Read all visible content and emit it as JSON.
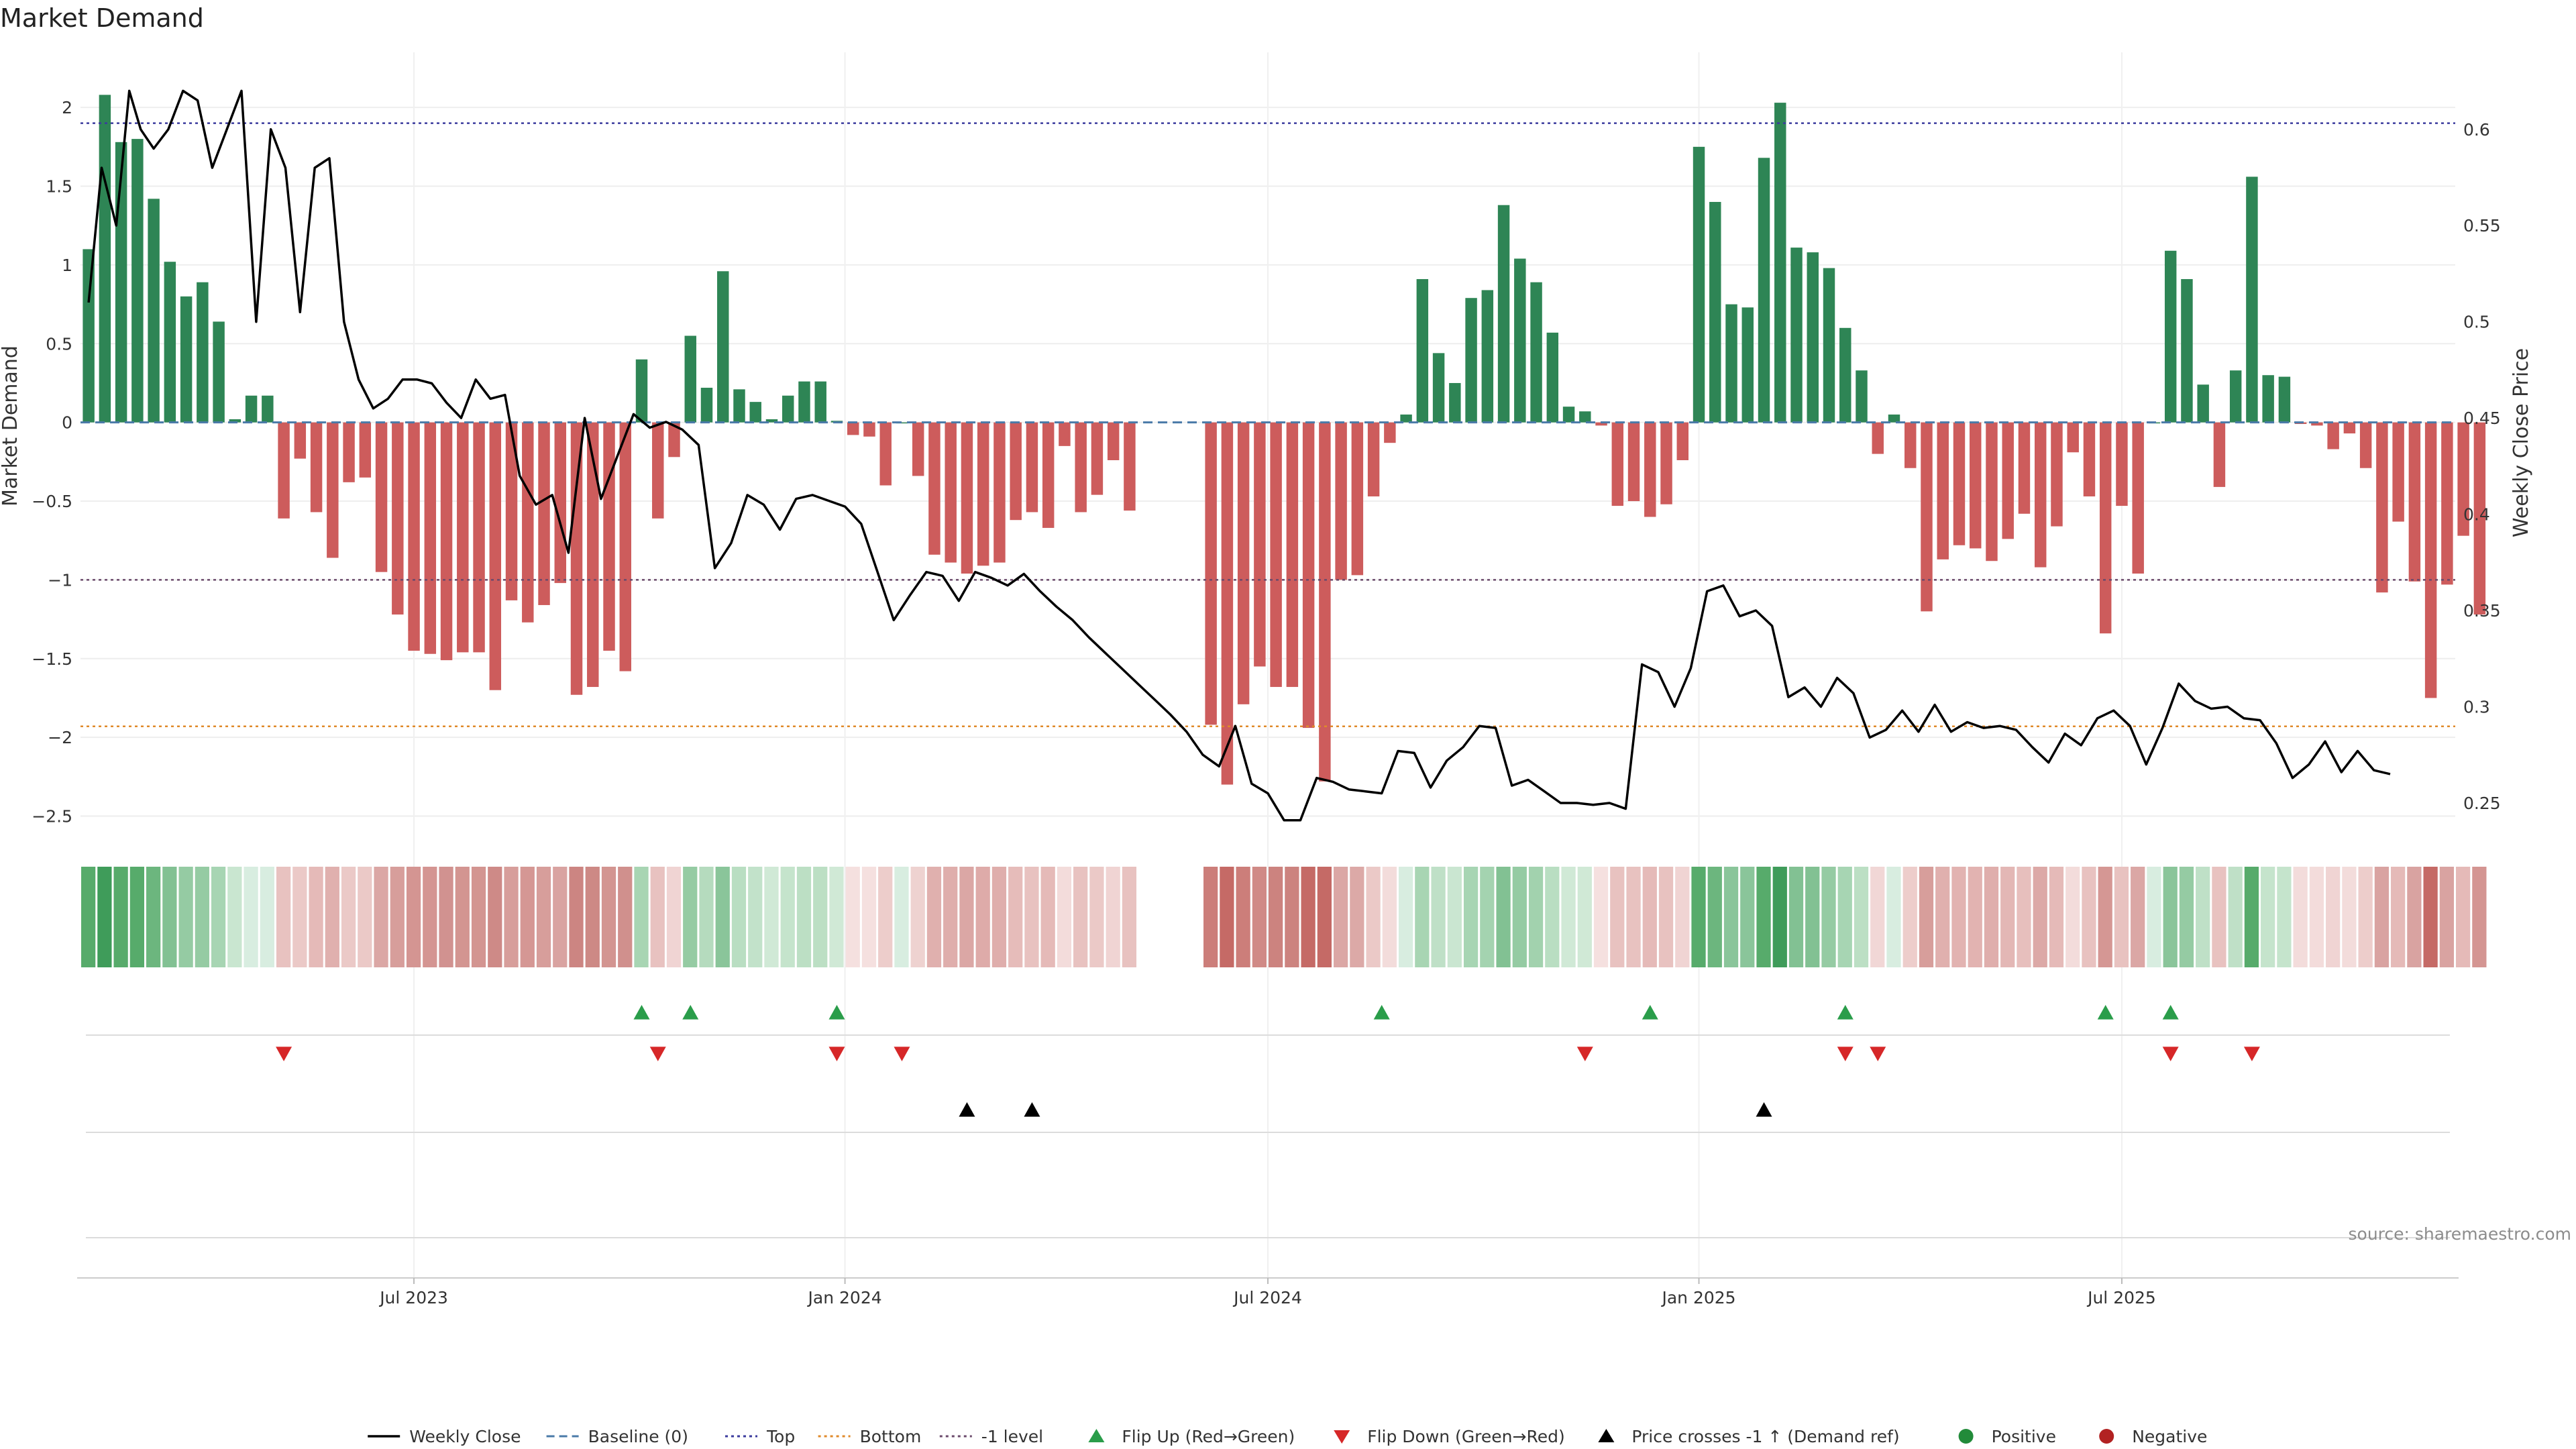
{
  "chart_data": {
    "type": "bar",
    "title": "Market Demand",
    "ylabel": "Market Demand",
    "y2label": "Weekly Close Price",
    "ylim": [
      -2.6,
      2.35
    ],
    "y2lim": [
      0.235,
      0.64
    ],
    "yticks": [
      2,
      1.5,
      1,
      0.5,
      0,
      -0.5,
      -1,
      -1.5,
      -2,
      -2.5
    ],
    "ytick_labels": [
      "2",
      "1.5",
      "1",
      "0.5",
      "0",
      "−0.5",
      "−1",
      "−1.5",
      "−2",
      "−2.5"
    ],
    "y2ticks": [
      0.6,
      0.55,
      0.5,
      0.45,
      0.4,
      0.35,
      0.3,
      0.25
    ],
    "y2tick_labels": [
      "0.6",
      "0.55",
      "0.5",
      "0.45",
      "0.4",
      "0.35",
      "0.3",
      "0.25"
    ],
    "x_range_weeks": [
      0,
      146
    ],
    "xticks": [
      {
        "week": 20.5,
        "label": "Jul 2023"
      },
      {
        "week": 47,
        "label": "Jan 2024"
      },
      {
        "week": 73,
        "label": "Jul 2024"
      },
      {
        "week": 99.5,
        "label": "Jan 2025"
      },
      {
        "week": 125.5,
        "label": "Jul 2025"
      }
    ],
    "levels": {
      "top": 1.9,
      "baseline": 0,
      "bottom": -1.93,
      "minus_one": -1
    },
    "demand": [
      1.1,
      2.08,
      1.78,
      1.8,
      1.42,
      1.02,
      0.8,
      0.89,
      0.64,
      0.02,
      0.17,
      0.17,
      -0.61,
      -0.23,
      -0.57,
      -0.86,
      -0.38,
      -0.35,
      -0.95,
      -1.22,
      -1.45,
      -1.47,
      -1.51,
      -1.46,
      -1.46,
      -1.7,
      -1.13,
      -1.27,
      -1.16,
      -1.02,
      -1.73,
      -1.68,
      -1.45,
      -1.58,
      0.4,
      -0.61,
      -0.22,
      0.55,
      0.22,
      0.96,
      0.21,
      0.13,
      0.02,
      0.17,
      0.26,
      0.26,
      0.01,
      -0.08,
      -0.09,
      -0.4,
      0,
      -0.34,
      -0.84,
      -0.89,
      -0.96,
      -0.91,
      -0.89,
      -0.62,
      -0.57,
      -0.67,
      -0.15,
      -0.57,
      -0.46,
      -0.24,
      -0.56,
      null,
      null,
      null,
      null,
      null,
      null,
      null,
      null,
      null,
      null,
      null,
      null,
      null,
      null,
      null,
      null,
      null,
      null,
      null,
      null,
      null,
      null,
      null,
      null,
      null,
      null,
      null,
      null,
      null,
      null,
      null,
      null,
      null,
      null,
      null,
      null,
      null,
      null,
      null,
      null,
      null,
      null,
      null,
      null,
      null,
      null,
      null,
      null,
      null,
      null,
      null,
      null,
      null,
      null,
      null,
      null,
      null,
      null,
      null,
      null,
      null,
      null,
      null,
      null,
      null,
      null,
      null,
      null,
      null,
      null,
      null,
      null,
      null,
      null,
      null,
      null,
      null,
      null,
      null,
      null
    ],
    "demand_part2_start_week": 69,
    "demand_part2": [
      -1.92,
      -2.3,
      -1.79,
      -1.55,
      -1.68,
      -1.68,
      -1.94,
      -2.28,
      -1.0,
      -0.97,
      -0.47,
      -0.13,
      0.05,
      0.91,
      0.44,
      0.25,
      0.79,
      0.84,
      1.38,
      1.04,
      0.89,
      0.57,
      0.1,
      0.07,
      -0.02,
      -0.53,
      -0.5,
      -0.6,
      -0.52,
      -0.24,
      1.75,
      1.4,
      0.75,
      0.73,
      1.68,
      2.03,
      1.11,
      1.08,
      0.98,
      0.6,
      0.33,
      -0.2,
      0.05,
      -0.29,
      -1.2,
      -0.87,
      -0.78,
      -0.8,
      -0.88,
      -0.74,
      -0.58,
      -0.92,
      -0.66,
      -0.19,
      -0.47,
      -1.34,
      -0.53,
      -0.96,
      0.0,
      1.09,
      0.91,
      0.24,
      -0.41,
      0.33,
      1.56,
      0.3,
      0.29,
      -0.01,
      -0.02,
      -0.17,
      -0.07,
      -0.29,
      -1.08,
      -0.63,
      -1.01,
      -1.75,
      -1.03,
      -0.72,
      -1.22
    ],
    "price_x": [
      0.5,
      1.3,
      2.2,
      3.0,
      3.7,
      4.5,
      5.4,
      6.3,
      7.2,
      8.1,
      9.0,
      9.9,
      10.8,
      11.7,
      12.6,
      13.5,
      14.4,
      15.3,
      16.2,
      17.1,
      18.0,
      18.9,
      19.8,
      20.7,
      21.6,
      22.5,
      23.4,
      24.3,
      25.2,
      26.1,
      27.0,
      28.0,
      29.0,
      30.0,
      31.0,
      32.0,
      33.0,
      34.0,
      35.0,
      36.0,
      37.0,
      38.0,
      39.0,
      40.0,
      41.0,
      42.0,
      43.0,
      44.0,
      45.0,
      46.0,
      47.0,
      48.0,
      49.0,
      50.0,
      51.0,
      52.0,
      53.0,
      54.0,
      55.0,
      56.0,
      57.0,
      58.0,
      59.0,
      60.0,
      61.0,
      62.0,
      63.0,
      64.0,
      65.0,
      66.0,
      67.0,
      68.0,
      69.0,
      70.0,
      71.0,
      72.0,
      73.0,
      74.0,
      75.0,
      76.0,
      77.0,
      78.0,
      79.0,
      80.0,
      81.0,
      82.0,
      83.0,
      84.0,
      85.0,
      86.0,
      87.0,
      88.0,
      89.0,
      90.0,
      91.0,
      92.0,
      93.0,
      94.0,
      95.0,
      96.0,
      97.0,
      98.0,
      99.0,
      100.0,
      101.0,
      102.0,
      103.0,
      104.0,
      105.0,
      106.0,
      107.0,
      108.0,
      109.0,
      110.0,
      111.0,
      112.0,
      113.0,
      114.0,
      115.0,
      116.0,
      117.0,
      118.0,
      119.0,
      120.0,
      121.0,
      122.0,
      123.0,
      124.0,
      125.0,
      126.0,
      127.0,
      128.0,
      129.0,
      130.0,
      131.0,
      132.0,
      133.0,
      134.0,
      135.0,
      136.0,
      137.0,
      138.0,
      139.0,
      140.0,
      141.0,
      142.0,
      143.0,
      144.0,
      145.0
    ],
    "price": [
      0.51,
      0.58,
      0.55,
      0.62,
      0.6,
      0.59,
      0.6,
      0.62,
      0.615,
      0.58,
      0.6,
      0.62,
      0.5,
      0.6,
      0.58,
      0.505,
      0.58,
      0.585,
      0.5,
      0.47,
      0.455,
      0.46,
      0.47,
      0.47,
      0.468,
      0.458,
      0.45,
      0.47,
      0.46,
      0.462,
      0.42,
      0.405,
      0.41,
      0.38,
      0.45,
      0.408,
      0.43,
      0.452,
      0.445,
      0.448,
      0.444,
      0.436,
      0.372,
      0.385,
      0.41,
      0.405,
      0.392,
      0.408,
      0.41,
      0.407,
      0.404,
      0.395,
      0.37,
      0.345,
      0.358,
      0.37,
      0.368,
      0.355,
      0.37,
      0.367,
      0.363,
      0.369,
      0.36,
      0.352,
      0.345,
      0.336,
      0.328,
      0.32,
      0.312,
      0.304,
      0.296,
      0.287,
      0.275,
      0.269,
      0.29,
      0.26,
      0.255,
      0.241,
      0.241,
      0.263,
      0.261,
      0.257,
      0.256,
      0.255,
      0.277,
      0.276,
      0.258,
      0.272,
      0.279,
      0.29,
      0.289,
      0.259,
      0.262,
      0.256,
      0.25,
      0.25,
      0.249,
      0.25,
      0.247,
      0.322,
      0.318,
      0.3,
      0.32,
      0.36,
      0.363,
      0.347,
      0.35,
      0.342,
      0.305,
      0.31,
      0.3,
      0.315,
      0.307,
      0.284,
      0.288,
      0.298,
      0.287,
      0.301,
      0.287,
      0.292,
      0.289,
      0.29,
      0.288,
      0.279,
      0.271,
      0.286,
      0.28,
      0.294,
      0.298,
      0.29,
      0.27,
      0.289,
      0.312,
      0.303,
      0.299,
      0.3,
      0.294,
      0.293,
      0.281,
      0.263,
      0.27,
      0.282,
      0.266,
      0.277,
      0.267,
      0.265
    ],
    "strip_bands": [
      "#57ab6b",
      "#3f9c5a",
      "#57ab6b",
      "#57ab6b",
      "#6cb67e",
      "#82c193",
      "#95cba3",
      "#95cba3",
      "#a7d5b3",
      "#c9e6d0",
      "#d8ede0",
      "#d8ede0",
      "#e8c2c0",
      "#ebc9c7",
      "#e5bab8",
      "#e0b0ae",
      "#ebc9c7",
      "#ebc9c7",
      "#dba7a5",
      "#d79e9b",
      "#d49592",
      "#d49592",
      "#d19290",
      "#d39591",
      "#d39591",
      "#ce8a87",
      "#d79e9b",
      "#d59794",
      "#d79e9b",
      "#d9a3a1",
      "#cc8582",
      "#cd8985",
      "#d39591",
      "#d0908d",
      "#a8d5b3",
      "#e8c2c0",
      "#f0d4d3",
      "#95cba3",
      "#b5dbbe",
      "#8ac59a",
      "#b9dec2",
      "#c2e2ca",
      "#d0e9d6",
      "#c5e4cc",
      "#bcdfc4",
      "#bcdfc4",
      "#d0e9d6",
      "#f5e0df",
      "#f5e0df",
      "#edcdcb",
      "#d8ede0",
      "#eed2d0",
      "#e0b0ae",
      "#dfaeac",
      "#dba7a5",
      "#deaba9",
      "#dfaeac",
      "#e6bcba",
      "#e8c2c0",
      "#e5bab8",
      "#f3dcdb",
      "#e8c2c0",
      "#ebc9c7",
      "#f0d4d3",
      "#e8c2c0",
      null,
      null,
      null,
      null,
      "#cc7e7a",
      "#c56a66",
      "#cc7e7a",
      "#d08a86",
      "#cc837f",
      "#cc837f",
      "#c56a66",
      "#c56a66",
      "#dba7a5",
      "#dca9a7",
      "#ebc9c7",
      "#f3dcdb",
      "#d8ede0",
      "#a8d5b3",
      "#bfe0c7",
      "#cae6d1",
      "#a7d5b3",
      "#a4d3b0",
      "#82c193",
      "#95cba3",
      "#a2d2ae",
      "#b9dec2",
      "#d0e9d6",
      "#d0e9d6",
      "#f5e0df",
      "#e8c2c0",
      "#e8c2c0",
      "#e5bab8",
      "#e8c2c0",
      "#f0d4d3",
      "#57ab6b",
      "#6cb67e",
      "#8ac59a",
      "#8ac59a",
      "#57ab6b",
      "#3f9c5a",
      "#82c193",
      "#82c193",
      "#95cba3",
      "#a7d5b3",
      "#bcdfc4",
      "#f1d7d6",
      "#d8ede0",
      "#edcdcb",
      "#d79e9b",
      "#e0b0ae",
      "#e2b3b1",
      "#e2b3b1",
      "#dfaeac",
      "#e3b7b5",
      "#e7bfbd",
      "#dca9a7",
      "#e5bab8",
      "#f3dcdb",
      "#e8c2c0",
      "#d59794",
      "#e8c2c0",
      "#dba7a5",
      "#d8ede0",
      "#8ac59a",
      "#95cba3",
      "#bfe0c7",
      "#e8c2c0",
      "#bfe0c7",
      "#57ab6b",
      "#c5e4cc",
      "#c5e4cc",
      "#f3dcdb",
      "#f3dcdb",
      "#f0d4d3",
      "#f3dcdb",
      "#edcdcb",
      "#d9a3a1",
      "#e5bab8",
      "#d9a3a1",
      "#c56a66",
      "#d9a3a1",
      "#e5bab8",
      "#d49592"
    ],
    "flip_up_weeks": [
      34,
      37,
      46,
      79.5,
      96,
      108,
      124,
      128
    ],
    "flip_down_weeks": [
      12,
      35,
      46,
      50,
      92,
      108,
      110,
      128,
      133
    ],
    "price_cross_weeks": [
      54,
      58,
      103
    ],
    "legend": [
      {
        "label": "Weekly Close",
        "kind": "line",
        "color": "#000000"
      },
      {
        "label": "Baseline (0)",
        "kind": "dash",
        "color": "#4a7aa8"
      },
      {
        "label": "Top",
        "kind": "dot",
        "color": "#3b3b9e"
      },
      {
        "label": "Bottom",
        "kind": "dot",
        "color": "#e08a2a"
      },
      {
        "label": "-1 level",
        "kind": "dot",
        "color": "#6b4a6b"
      },
      {
        "label": "Flip Up (Red→Green)",
        "kind": "tri-up",
        "color": "#2a9d4a"
      },
      {
        "label": "Flip Down (Green→Red)",
        "kind": "tri-down",
        "color": "#d62728"
      },
      {
        "label": "Price crosses -1 ↑ (Demand ref)",
        "kind": "tri-up",
        "color": "#000000"
      },
      {
        "label": "Positive",
        "kind": "circle",
        "color": "#228b3a"
      },
      {
        "label": "Negative",
        "kind": "circle",
        "color": "#b22222"
      }
    ],
    "source": "source: sharemaestro.com",
    "colors": {
      "positive": "#2e8555",
      "negative": "#cd5c5c",
      "price": "#000000"
    }
  }
}
